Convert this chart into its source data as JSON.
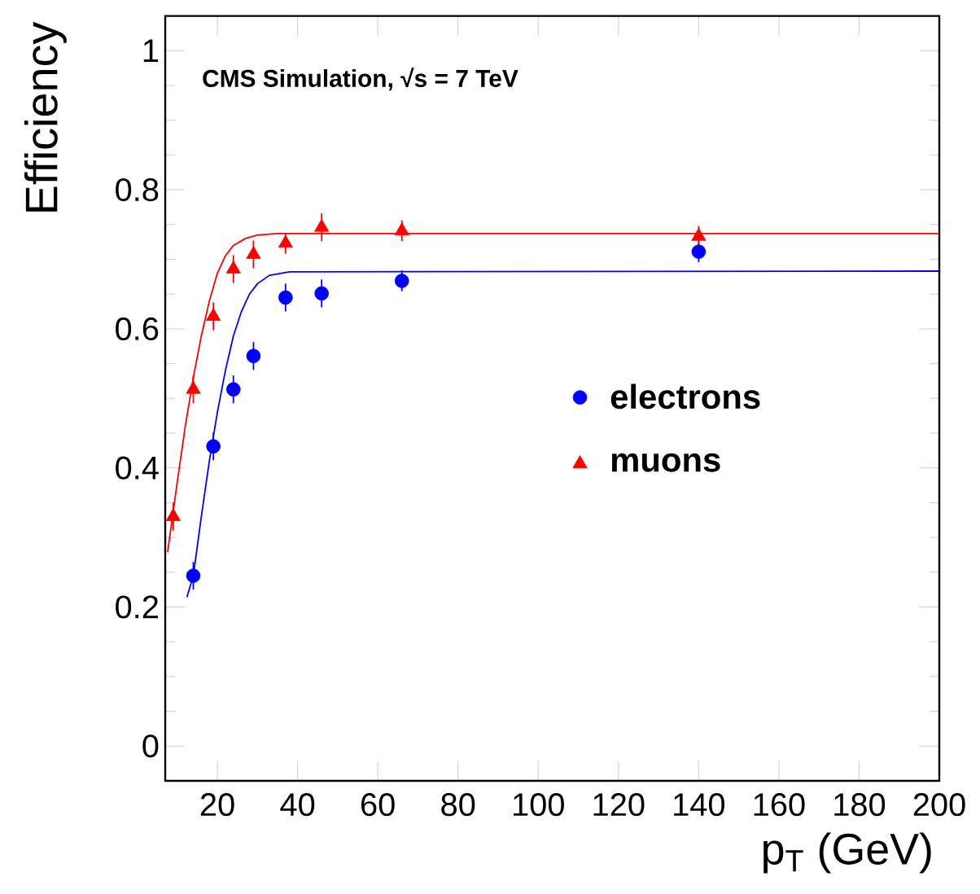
{
  "chart_data": {
    "type": "scatter",
    "xlabel": "p$_{T}$ (GeV)",
    "ylabel": "Efficiency",
    "annotations": [
      "CMS Simulation,  √s = 7 TeV"
    ],
    "xlim": [
      7,
      200
    ],
    "xticks": [
      20,
      40,
      60,
      80,
      100,
      120,
      140,
      160,
      180,
      200
    ],
    "ylim": [
      -0.05,
      1.05
    ],
    "yticks": [
      0,
      0.2,
      0.4,
      0.6,
      0.8,
      1
    ],
    "grid": false,
    "legend": "right",
    "series": [
      {
        "name": "electrons",
        "marker": "circle",
        "color": "#0000ff",
        "x": [
          14,
          19,
          24,
          29,
          37,
          46,
          66,
          140
        ],
        "values": [
          0.245,
          0.431,
          0.513,
          0.561,
          0.645,
          0.651,
          0.669,
          0.711
        ],
        "errors": [
          0.02,
          0.02,
          0.02,
          0.02,
          0.02,
          0.02,
          0.015,
          0.015
        ]
      },
      {
        "name": "muons",
        "marker": "triangle",
        "color": "#ff0000",
        "x": [
          9,
          14,
          19,
          24,
          29,
          37,
          46,
          66,
          140
        ],
        "values": [
          0.33,
          0.513,
          0.618,
          0.686,
          0.707,
          0.723,
          0.746,
          0.741,
          0.733
        ],
        "errors": [
          0.02,
          0.02,
          0.02,
          0.02,
          0.02,
          0.015,
          0.02,
          0.015,
          0.015
        ]
      },
      {
        "type": "line",
        "color": "#0000ff",
        "x": [
          12.4,
          14,
          16,
          18,
          20,
          22,
          24,
          26,
          28,
          30,
          33,
          38,
          200
        ],
        "values": [
          0.214,
          0.245,
          0.33,
          0.41,
          0.48,
          0.54,
          0.59,
          0.625,
          0.65,
          0.665,
          0.677,
          0.682,
          0.683
        ]
      },
      {
        "type": "line",
        "color": "#ff0000",
        "x": [
          7.6,
          10,
          12,
          14,
          16,
          18,
          20,
          22,
          24,
          27,
          30,
          35,
          200
        ],
        "values": [
          0.279,
          0.38,
          0.46,
          0.53,
          0.59,
          0.64,
          0.68,
          0.705,
          0.72,
          0.73,
          0.735,
          0.737,
          0.737
        ]
      }
    ]
  }
}
